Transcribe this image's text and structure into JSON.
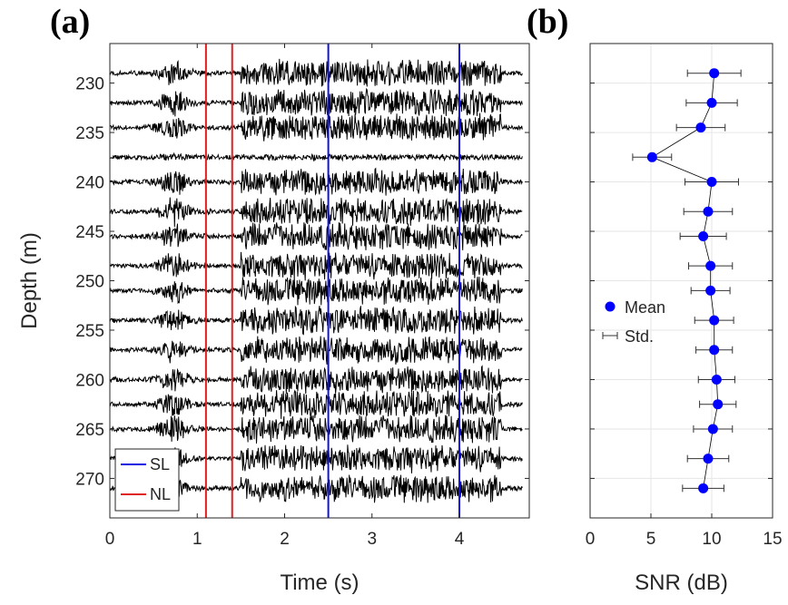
{
  "chart_data": [
    {
      "panel": "(a)",
      "type": "line",
      "title": "",
      "xlabel": "Time (s)",
      "ylabel": "Depth (m)",
      "xlim": [
        0,
        4.8
      ],
      "ylim": [
        274,
        226
      ],
      "xticks": [
        "0",
        "1",
        "2",
        "3",
        "4"
      ],
      "yticks": [
        "230",
        "235",
        "240",
        "245",
        "250",
        "255",
        "260",
        "265",
        "270"
      ],
      "trace_depths": [
        229,
        232,
        234.5,
        237.5,
        240,
        243,
        245.5,
        248.5,
        251,
        254,
        257,
        260,
        262.5,
        265,
        268,
        271
      ],
      "traces": {
        "start_s": 0,
        "end_s": 4.72,
        "pulse1_center_s": 0.73,
        "pulse1_halfwidth_s": 0.16,
        "pulse2_start_s": 1.5,
        "pulse2_end_s": 4.48,
        "amp_full_m": 1.5,
        "amp_pulse1_m": 1.3,
        "amp_noise_m": 0.28,
        "weak_trace_depth": 237.5
      },
      "vlines": [
        {
          "name": "NL",
          "x": 1.1,
          "color": "#e02020"
        },
        {
          "name": "NL",
          "x": 1.4,
          "color": "#e02020"
        },
        {
          "name": "SL",
          "x": 2.5,
          "color": "#1010e0"
        },
        {
          "name": "SL",
          "x": 4.0,
          "color": "#1010e0"
        }
      ],
      "legend": {
        "location": "bottom-left",
        "entries": [
          {
            "label": "SL",
            "color": "#1010e0"
          },
          {
            "label": "NL",
            "color": "#e02020"
          }
        ]
      },
      "grid": false
    },
    {
      "panel": "(b)",
      "type": "scatter",
      "title": "",
      "xlabel": "SNR (dB)",
      "ylabel": "",
      "xlim": [
        0,
        15
      ],
      "ylim": [
        274,
        226
      ],
      "xticks": [
        "0",
        "5",
        "10",
        "15"
      ],
      "grid": true,
      "series": [
        {
          "name": "Mean",
          "color": "#0000ff",
          "depth": [
            229,
            232,
            234.5,
            237.5,
            240,
            243,
            245.5,
            248.5,
            251,
            254,
            257,
            260,
            262.5,
            265,
            268,
            271
          ],
          "mean": [
            10.2,
            10.0,
            9.1,
            5.1,
            10.0,
            9.7,
            9.3,
            9.9,
            9.9,
            10.2,
            10.2,
            10.4,
            10.5,
            10.1,
            9.7,
            9.3
          ],
          "std": [
            2.2,
            2.1,
            2.0,
            1.6,
            2.2,
            2.0,
            1.9,
            1.8,
            1.6,
            1.6,
            1.5,
            1.5,
            1.5,
            1.6,
            1.7,
            1.7
          ]
        }
      ],
      "legend": {
        "location": "middle-left",
        "entries": [
          {
            "label": "Mean",
            "marker": "dot",
            "color": "#0000ff"
          },
          {
            "label": "Std.",
            "marker": "errorbar",
            "color": "#000000"
          }
        ]
      }
    }
  ]
}
